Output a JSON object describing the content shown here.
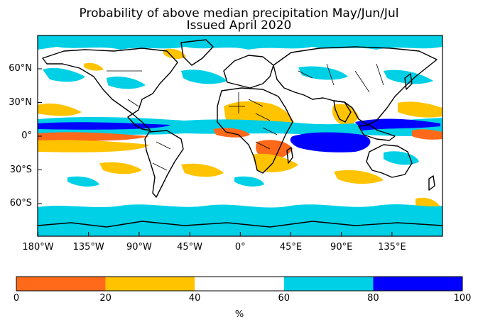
{
  "title": {
    "line1": "Probability of above median precipitation May/Jun/Jul",
    "line2": "Issued April 2020"
  },
  "map": {
    "projection": "plate carree (global)",
    "lon_ticks": [
      "180°W",
      "135°W",
      "90°W",
      "45°W",
      "0°",
      "45°E",
      "90°E",
      "135°E"
    ],
    "lat_ticks": [
      "60°N",
      "30°N",
      "0°",
      "30°S",
      "60°S"
    ],
    "features": [
      "coastlines",
      "country-borders"
    ]
  },
  "colorbar": {
    "ticks": [
      "0",
      "20",
      "40",
      "60",
      "80",
      "100"
    ],
    "unit": "%",
    "bins": [
      {
        "range": [
          0,
          20
        ],
        "color": "#ff6a1a"
      },
      {
        "range": [
          20,
          40
        ],
        "color": "#ffc300"
      },
      {
        "range": [
          40,
          60
        ],
        "color": "#ffffff"
      },
      {
        "range": [
          60,
          80
        ],
        "color": "#00d0e6"
      },
      {
        "range": [
          80,
          100
        ],
        "color": "#0000ff"
      }
    ]
  },
  "colors": {
    "below_strong": "#ff6a1a",
    "below": "#ffc300",
    "neutral": "#ffffff",
    "above": "#00d0e6",
    "above_strong": "#0000ff",
    "coastline": "#000000"
  }
}
